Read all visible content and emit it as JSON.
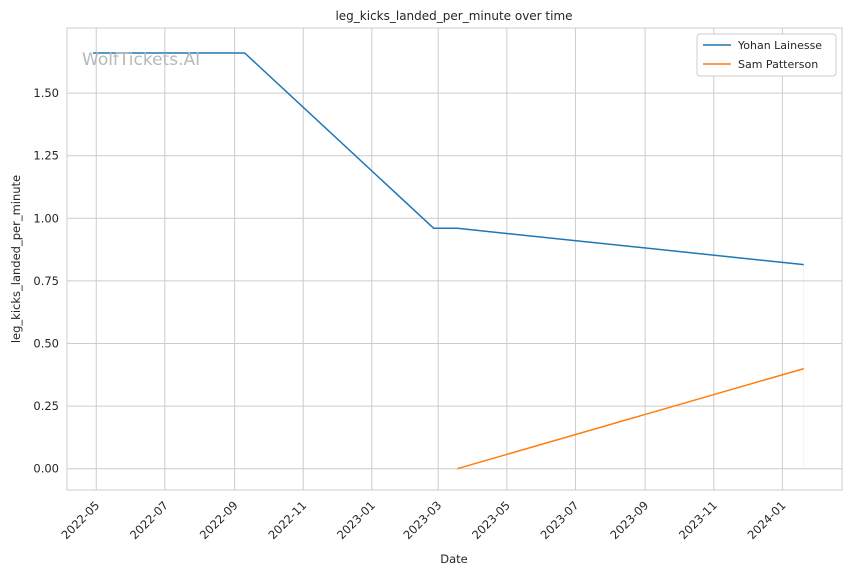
{
  "chart_data": {
    "type": "line",
    "title": "leg_kicks_landed_per_minute over time",
    "xlabel": "Date",
    "ylabel": "leg_kicks_landed_per_minute",
    "watermark": "WolfTickets.AI",
    "x_ticks": [
      "2022-05",
      "2022-07",
      "2022-09",
      "2022-11",
      "2023-01",
      "2023-03",
      "2023-05",
      "2023-07",
      "2023-09",
      "2023-11",
      "2024-01"
    ],
    "y_ticks": [
      "0.00",
      "0.25",
      "0.50",
      "0.75",
      "1.00",
      "1.25",
      "1.50"
    ],
    "ylim": [
      -0.085,
      1.76
    ],
    "xlim": [
      "2022-04-05",
      "2024-02-23"
    ],
    "grid": true,
    "legend_position": "top-right",
    "series": [
      {
        "name": "Yohan Lainesse",
        "color": "#1f77b4",
        "x": [
          "2022-04-28",
          "2022-09-10",
          "2023-02-25",
          "2023-03-18",
          "2024-01-20"
        ],
        "y": [
          1.66,
          1.66,
          0.96,
          0.96,
          0.815
        ]
      },
      {
        "name": "Sam Patterson",
        "color": "#ff7f0e",
        "x": [
          "2023-03-18",
          "2024-01-20"
        ],
        "y": [
          0.0,
          0.4
        ]
      }
    ]
  }
}
